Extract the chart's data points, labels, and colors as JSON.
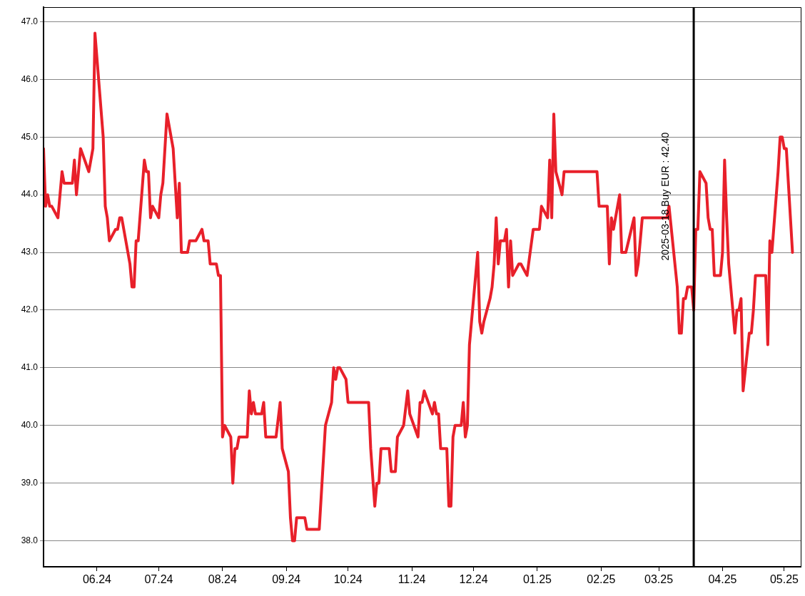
{
  "chart_data": {
    "type": "line",
    "x": [
      "2024-05-06",
      "2024-05-07",
      "2024-05-08",
      "2024-05-09",
      "2024-05-10",
      "2024-05-13",
      "2024-05-15",
      "2024-05-16",
      "2024-05-20",
      "2024-05-21",
      "2024-05-22",
      "2024-05-24",
      "2024-05-28",
      "2024-05-30",
      "2024-05-31",
      "2024-06-04",
      "2024-06-05",
      "2024-06-06",
      "2024-06-07",
      "2024-06-10",
      "2024-06-11",
      "2024-06-12",
      "2024-06-13",
      "2024-06-17",
      "2024-06-18",
      "2024-06-19",
      "2024-06-20",
      "2024-06-21",
      "2024-06-24",
      "2024-06-25",
      "2024-06-26",
      "2024-06-27",
      "2024-06-28",
      "2024-07-01",
      "2024-07-02",
      "2024-07-03",
      "2024-07-05",
      "2024-07-08",
      "2024-07-09",
      "2024-07-10",
      "2024-07-11",
      "2024-07-12",
      "2024-07-15",
      "2024-07-16",
      "2024-07-19",
      "2024-07-22",
      "2024-07-23",
      "2024-07-25",
      "2024-07-26",
      "2024-07-29",
      "2024-07-30",
      "2024-07-31",
      "2024-08-01",
      "2024-08-02",
      "2024-08-05",
      "2024-08-06",
      "2024-08-07",
      "2024-08-08",
      "2024-08-09",
      "2024-08-13",
      "2024-08-14",
      "2024-08-15",
      "2024-08-16",
      "2024-08-17",
      "2024-08-20",
      "2024-08-21",
      "2024-08-22",
      "2024-08-27",
      "2024-08-29",
      "2024-08-30",
      "2024-09-02",
      "2024-09-03",
      "2024-09-04",
      "2024-09-05",
      "2024-09-06",
      "2024-09-10",
      "2024-09-11",
      "2024-09-17",
      "2024-09-20",
      "2024-09-23",
      "2024-09-24",
      "2024-09-25",
      "2024-09-26",
      "2024-09-27",
      "2024-09-30",
      "2024-10-01",
      "2024-10-11",
      "2024-10-12",
      "2024-10-14",
      "2024-10-15",
      "2024-10-16",
      "2024-10-17",
      "2024-10-21",
      "2024-10-22",
      "2024-10-24",
      "2024-10-25",
      "2024-10-28",
      "2024-10-30",
      "2024-10-31",
      "2024-11-04",
      "2024-11-05",
      "2024-11-06",
      "2024-11-07",
      "2024-11-11",
      "2024-11-12",
      "2024-11-13",
      "2024-11-14",
      "2024-11-15",
      "2024-11-18",
      "2024-11-19",
      "2024-11-20",
      "2024-11-21",
      "2024-11-22",
      "2024-11-25",
      "2024-11-26",
      "2024-11-27",
      "2024-11-28",
      "2024-11-29",
      "2024-12-03",
      "2024-12-04",
      "2024-12-05",
      "2024-12-06",
      "2024-12-09",
      "2024-12-10",
      "2024-12-11",
      "2024-12-12",
      "2024-12-13",
      "2024-12-14",
      "2024-12-16",
      "2024-12-17",
      "2024-12-18",
      "2024-12-19",
      "2024-12-20",
      "2024-12-23",
      "2024-12-24",
      "2024-12-27",
      "2024-12-30",
      "2025-01-02",
      "2025-01-03",
      "2025-01-06",
      "2025-01-07",
      "2025-01-08",
      "2025-01-09",
      "2025-01-10",
      "2025-01-13",
      "2025-01-14",
      "2025-01-30",
      "2025-01-31",
      "2025-02-04",
      "2025-02-05",
      "2025-02-06",
      "2025-02-07",
      "2025-02-10",
      "2025-02-11",
      "2025-02-13",
      "2025-02-17",
      "2025-02-18",
      "2025-02-19",
      "2025-02-21",
      "2025-03-05",
      "2025-03-06",
      "2025-03-10",
      "2025-03-11",
      "2025-03-12",
      "2025-03-13",
      "2025-03-14",
      "2025-03-15",
      "2025-03-17",
      "2025-03-18",
      "2025-03-19",
      "2025-03-20",
      "2025-03-21",
      "2025-03-24",
      "2025-03-25",
      "2025-03-26",
      "2025-03-27",
      "2025-03-28",
      "2025-03-31",
      "2025-04-01",
      "2025-04-02",
      "2025-04-03",
      "2025-04-04",
      "2025-04-07",
      "2025-04-08",
      "2025-04-09",
      "2025-04-10",
      "2025-04-11",
      "2025-04-14",
      "2025-04-15",
      "2025-04-16",
      "2025-04-17",
      "2025-04-22",
      "2025-04-23",
      "2025-04-24",
      "2025-04-25",
      "2025-04-28",
      "2025-04-29",
      "2025-04-30",
      "2025-05-01",
      "2025-05-02",
      "2025-05-05"
    ],
    "series": [
      {
        "color": "#e8202a",
        "values": [
          44.8,
          43.8,
          44.0,
          43.8,
          43.8,
          43.6,
          44.4,
          44.2,
          44.2,
          44.6,
          44.0,
          44.8,
          44.4,
          44.8,
          46.8,
          45.0,
          43.8,
          43.6,
          43.2,
          43.4,
          43.4,
          43.6,
          43.6,
          42.8,
          42.4,
          42.4,
          43.2,
          43.2,
          44.6,
          44.4,
          44.4,
          43.6,
          43.8,
          43.6,
          44.0,
          44.2,
          45.4,
          44.8,
          44.2,
          43.6,
          44.2,
          43.0,
          43.0,
          43.2,
          43.2,
          43.4,
          43.2,
          43.2,
          42.8,
          42.8,
          42.6,
          42.6,
          39.8,
          40.0,
          39.8,
          39.0,
          39.6,
          39.6,
          39.8,
          39.8,
          40.6,
          40.2,
          40.4,
          40.2,
          40.2,
          40.4,
          39.8,
          39.8,
          40.4,
          39.6,
          39.2,
          38.4,
          38.0,
          38.0,
          38.4,
          38.4,
          38.2,
          38.2,
          40.0,
          40.4,
          41.0,
          40.8,
          41.0,
          41.0,
          40.8,
          40.4,
          40.4,
          39.6,
          38.6,
          39.0,
          39.0,
          39.6,
          39.6,
          39.2,
          39.2,
          39.8,
          40.0,
          40.6,
          40.2,
          39.8,
          40.4,
          40.4,
          40.6,
          40.2,
          40.4,
          40.2,
          40.2,
          39.6,
          39.6,
          38.6,
          38.6,
          39.8,
          40.0,
          40.0,
          40.4,
          39.8,
          40.0,
          41.4,
          43.0,
          41.8,
          41.6,
          41.8,
          42.2,
          42.4,
          42.8,
          43.6,
          42.8,
          43.2,
          43.2,
          43.4,
          42.4,
          43.2,
          42.6,
          42.8,
          42.8,
          42.6,
          43.4,
          43.4,
          43.8,
          43.6,
          44.6,
          43.6,
          45.4,
          44.4,
          44.0,
          44.4,
          44.4,
          43.8,
          43.8,
          42.8,
          43.6,
          43.4,
          44.0,
          43.0,
          43.0,
          43.6,
          42.6,
          42.8,
          43.6,
          43.6,
          43.8,
          42.4,
          41.6,
          41.6,
          42.2,
          42.2,
          42.4,
          42.4,
          42.0,
          43.4,
          43.4,
          44.4,
          44.2,
          43.6,
          43.4,
          43.4,
          42.6,
          42.6,
          43.0,
          44.6,
          43.6,
          42.8,
          41.6,
          42.0,
          42.0,
          42.2,
          40.6,
          41.6,
          41.6,
          42.0,
          42.6,
          42.6,
          41.4,
          43.2,
          43.0,
          44.4,
          45.0,
          45.0,
          44.8,
          44.8,
          43.0
        ]
      }
    ],
    "xlim": [
      "2024-05-06",
      "2025-05-09"
    ],
    "xticks": [
      {
        "value": "2024-06-01",
        "label": "06.24"
      },
      {
        "value": "2024-07-01",
        "label": "07.24"
      },
      {
        "value": "2024-08-01",
        "label": "08.24"
      },
      {
        "value": "2024-09-01",
        "label": "09.24"
      },
      {
        "value": "2024-10-01",
        "label": "10.24"
      },
      {
        "value": "2024-11-01",
        "label": "11.24"
      },
      {
        "value": "2024-12-01",
        "label": "12.24"
      },
      {
        "value": "2025-01-01",
        "label": "01.25"
      },
      {
        "value": "2025-02-01",
        "label": "02.25"
      },
      {
        "value": "2025-03-01",
        "label": "03.25"
      },
      {
        "value": "2025-04-01",
        "label": "04.25"
      },
      {
        "value": "2025-05-01",
        "label": "05.25"
      }
    ],
    "ylim": [
      37.55,
      47.25
    ],
    "yticks": [
      {
        "value": 38,
        "label": "38.0"
      },
      {
        "value": 39,
        "label": "39.0"
      },
      {
        "value": 40,
        "label": "40.0"
      },
      {
        "value": 41,
        "label": "41.0"
      },
      {
        "value": 42,
        "label": "42.0"
      },
      {
        "value": 43,
        "label": "43.0"
      },
      {
        "value": 44,
        "label": "44.0"
      },
      {
        "value": 45,
        "label": "45.0"
      },
      {
        "value": 46,
        "label": "46.0"
      },
      {
        "value": 47,
        "label": "47.0"
      }
    ],
    "grid": "y",
    "legend": false,
    "marker": "none",
    "line_style": "solid",
    "ref_lines": [
      {
        "axis": "x",
        "value": "2025-03-18",
        "label": "2025-03-18 Buy EUR : 42.40",
        "color": "#000000"
      }
    ]
  }
}
